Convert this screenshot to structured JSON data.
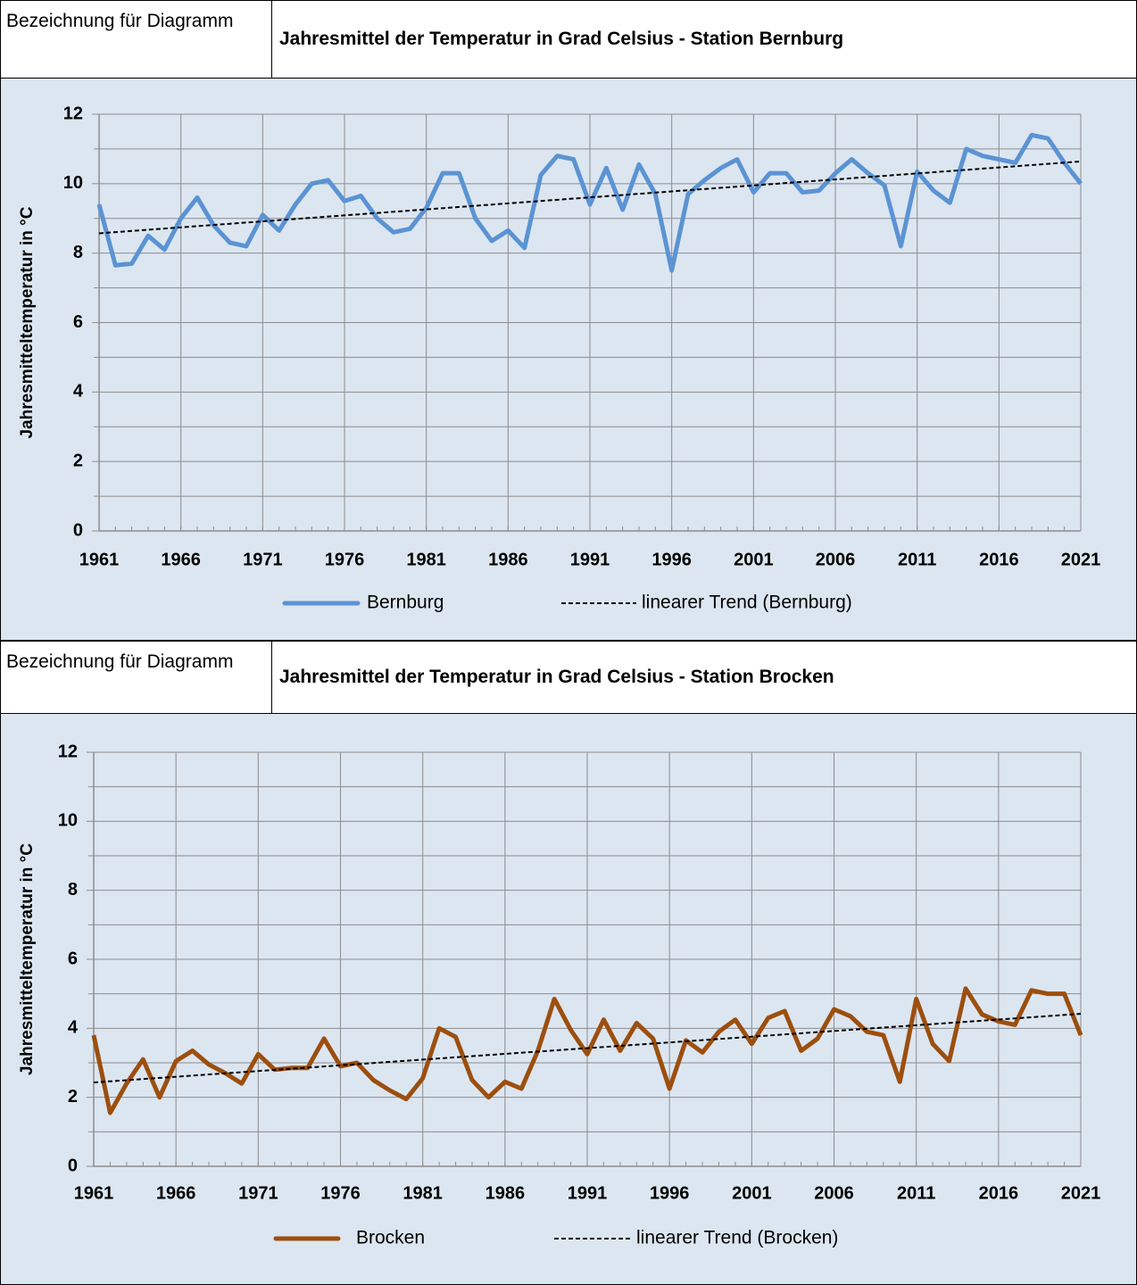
{
  "chart_data": [
    {
      "type": "line",
      "label": "Bezeichnung für Diagramm",
      "title": "Jahresmittel der Temperatur in Grad Celsius - Station Bernburg",
      "y_label": "Jahresmitteltemperatur in °C",
      "x": [
        1961,
        1962,
        1963,
        1964,
        1965,
        1966,
        1967,
        1968,
        1969,
        1970,
        1971,
        1972,
        1973,
        1974,
        1975,
        1976,
        1977,
        1978,
        1979,
        1980,
        1981,
        1982,
        1983,
        1984,
        1985,
        1986,
        1987,
        1988,
        1989,
        1990,
        1991,
        1992,
        1993,
        1994,
        1995,
        1996,
        1997,
        1998,
        1999,
        2000,
        2001,
        2002,
        2003,
        2004,
        2005,
        2006,
        2007,
        2008,
        2009,
        2010,
        2011,
        2012,
        2013,
        2014,
        2015,
        2016,
        2017,
        2018,
        2019,
        2020,
        2021
      ],
      "series": [
        {
          "name": "Bernburg",
          "color": "#5b93d3",
          "style": "solid",
          "values": [
            9.4,
            7.65,
            7.7,
            8.5,
            8.1,
            9.0,
            9.6,
            8.8,
            8.3,
            8.2,
            9.1,
            8.65,
            9.4,
            10.0,
            10.1,
            9.5,
            9.65,
            9.0,
            8.6,
            8.7,
            9.3,
            10.3,
            10.3,
            9.0,
            8.35,
            8.65,
            8.15,
            10.25,
            10.8,
            10.7,
            9.4,
            10.45,
            9.25,
            10.55,
            9.7,
            7.5,
            9.7,
            10.1,
            10.45,
            10.7,
            9.75,
            10.3,
            10.3,
            9.75,
            9.8,
            10.3,
            10.7,
            10.3,
            9.95,
            8.2,
            10.35,
            9.8,
            9.45,
            11.0,
            10.8,
            10.7,
            10.6,
            11.4,
            11.3,
            10.6,
            10.0
          ]
        },
        {
          "name": "linearer Trend (Bernburg)",
          "color": "#000000",
          "style": "dashed",
          "x": [
            1961,
            2021
          ],
          "values": [
            8.57,
            10.64
          ]
        }
      ],
      "xlim": [
        1961,
        2021
      ],
      "xticks": [
        1961,
        1966,
        1971,
        1976,
        1981,
        1986,
        1991,
        1996,
        2001,
        2006,
        2011,
        2016,
        2021
      ],
      "ylim": [
        0,
        12
      ],
      "yticks": [
        0,
        2,
        4,
        6,
        8,
        10,
        12
      ],
      "yminorticks": [
        1,
        3,
        5,
        7,
        9,
        11
      ],
      "grid": true
    },
    {
      "type": "line",
      "label": "Bezeichnung für Diagramm",
      "title": "Jahresmittel der Temperatur in Grad Celsius - Station Brocken",
      "y_label": "Jahresmitteltemperatur in °C",
      "x": [
        1961,
        1962,
        1963,
        1964,
        1965,
        1966,
        1967,
        1968,
        1969,
        1970,
        1971,
        1972,
        1973,
        1974,
        1975,
        1976,
        1977,
        1978,
        1979,
        1980,
        1981,
        1982,
        1983,
        1984,
        1985,
        1986,
        1987,
        1988,
        1989,
        1990,
        1991,
        1992,
        1993,
        1994,
        1995,
        1996,
        1997,
        1998,
        1999,
        2000,
        2001,
        2002,
        2003,
        2004,
        2005,
        2006,
        2007,
        2008,
        2009,
        2010,
        2011,
        2012,
        2013,
        2014,
        2015,
        2016,
        2017,
        2018,
        2019,
        2020,
        2021
      ],
      "series": [
        {
          "name": "Brocken",
          "color": "#9c4f0e",
          "style": "solid",
          "values": [
            3.8,
            1.55,
            2.4,
            3.1,
            2.0,
            3.05,
            3.35,
            2.95,
            2.7,
            2.4,
            3.25,
            2.8,
            2.85,
            2.85,
            3.7,
            2.9,
            3.0,
            2.5,
            2.2,
            1.95,
            2.55,
            4.0,
            3.75,
            2.5,
            2.0,
            2.45,
            2.25,
            3.35,
            4.85,
            3.95,
            3.25,
            4.25,
            3.35,
            4.15,
            3.7,
            2.25,
            3.65,
            3.3,
            3.9,
            4.25,
            3.55,
            4.3,
            4.5,
            3.35,
            3.7,
            4.55,
            4.35,
            3.9,
            3.8,
            2.45,
            4.85,
            3.55,
            3.05,
            5.15,
            4.4,
            4.2,
            4.1,
            5.1,
            5.0,
            5.0,
            3.8
          ]
        },
        {
          "name": "linearer Trend (Brocken)",
          "color": "#000000",
          "style": "dashed",
          "x": [
            1961,
            2021
          ],
          "values": [
            2.43,
            4.42
          ]
        }
      ],
      "xlim": [
        1961,
        2021
      ],
      "xticks": [
        1961,
        1966,
        1971,
        1976,
        1981,
        1986,
        1991,
        1996,
        2001,
        2006,
        2011,
        2016,
        2021
      ],
      "ylim": [
        0,
        12
      ],
      "yticks": [
        0,
        2,
        4,
        6,
        8,
        10,
        12
      ],
      "yminorticks": [
        1,
        3,
        5,
        7,
        9,
        11
      ],
      "grid": true
    }
  ]
}
